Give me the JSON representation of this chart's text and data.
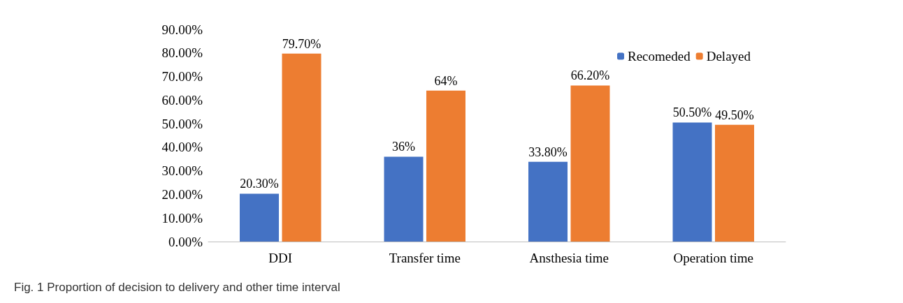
{
  "chart_data": {
    "type": "bar",
    "categories": [
      "DDI",
      "Transfer time",
      "Ansthesia time",
      "Operation time"
    ],
    "series": [
      {
        "name": "Recomeded",
        "color": "#4472c4",
        "values": [
          20.3,
          36,
          33.8,
          50.5
        ],
        "value_labels": [
          "20.30%",
          "36%",
          "33.80%",
          "50.50%"
        ]
      },
      {
        "name": "Delayed",
        "color": "#ed7d31",
        "values": [
          79.7,
          64,
          66.2,
          49.5
        ],
        "value_labels": [
          "79.70%",
          "64%",
          "66.20%",
          "49.50%"
        ]
      }
    ],
    "ylim": [
      0,
      90
    ],
    "yticks": [
      {
        "value": 0,
        "label": "0.00%"
      },
      {
        "value": 10,
        "label": "10.00%"
      },
      {
        "value": 20,
        "label": "20.00%"
      },
      {
        "value": 30,
        "label": "30.00%"
      },
      {
        "value": 40,
        "label": "40.00%"
      },
      {
        "value": 50,
        "label": "50.00%"
      },
      {
        "value": 60,
        "label": "60.00%"
      },
      {
        "value": 70,
        "label": "70.00%"
      },
      {
        "value": 80,
        "label": "80.00%"
      },
      {
        "value": 90,
        "label": "90.00%"
      }
    ],
    "grid": false,
    "legend": "top right",
    "annotations": [
      "Fig. 1 Proportion of decision to delivery and other time interval"
    ]
  }
}
